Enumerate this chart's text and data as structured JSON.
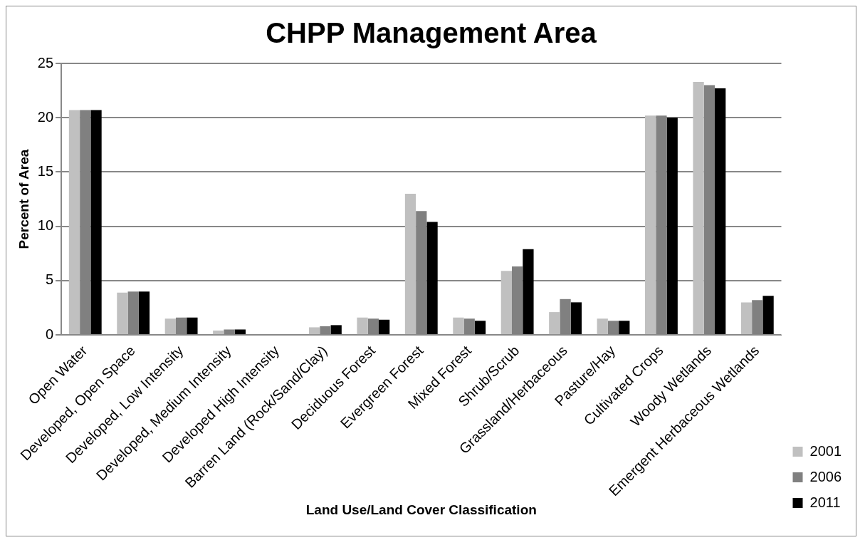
{
  "chart_data": {
    "type": "bar",
    "title": "CHPP Management Area",
    "xlabel": "Land Use/Land Cover Classification",
    "ylabel": "Percent of Area",
    "categories": [
      "Open Water",
      "Developed, Open Space",
      "Developed, Low Intensity",
      "Developed, Medium Intensity",
      "Developed High Intensity",
      "Barren Land (Rock/Sand/Clay)",
      "Deciduous Forest",
      "Evergreen Forest",
      "Mixed Forest",
      "Shrub/Scrub",
      "Grassland/Herbaceous",
      "Pasture/Hay",
      "Cultivated Crops",
      "Woody Wetlands",
      "Emergent Herbaceous Wetlands"
    ],
    "series": [
      {
        "name": "2001",
        "color": "#c0c0c0",
        "values": [
          20.7,
          3.9,
          1.5,
          0.4,
          null,
          0.7,
          1.6,
          13.0,
          1.6,
          5.9,
          2.1,
          1.5,
          20.2,
          23.3,
          3.0
        ]
      },
      {
        "name": "2006",
        "color": "#808080",
        "values": [
          20.7,
          4.0,
          1.6,
          0.5,
          null,
          0.8,
          1.5,
          11.4,
          1.5,
          6.3,
          3.3,
          1.3,
          20.2,
          23.0,
          3.2
        ]
      },
      {
        "name": "2011",
        "color": "#000000",
        "values": [
          20.7,
          4.0,
          1.6,
          0.5,
          null,
          0.9,
          1.4,
          10.4,
          1.3,
          7.9,
          3.0,
          1.3,
          20.0,
          22.7,
          3.6
        ]
      }
    ],
    "ylim": [
      0,
      25
    ],
    "yticks": [
      0,
      5,
      10,
      15,
      20,
      25
    ],
    "grid": "y",
    "legend": "right"
  }
}
